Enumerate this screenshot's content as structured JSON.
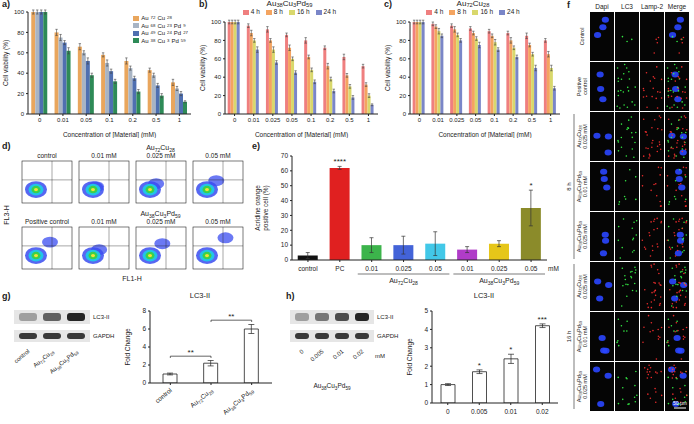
{
  "chart_data": [
    {
      "panel": "a)",
      "type": "bar",
      "x_label": "Concentration of [Material] (mM)",
      "y_label": "Cell viability (%)",
      "categories": [
        "0",
        "0.01",
        "0.05",
        "0.1",
        "0.2",
        "0.5",
        "1"
      ],
      "series": [
        {
          "name": "Au72Cu28",
          "color": "#e9a65d",
          "values": [
            100,
            80,
            66,
            58,
            52,
            43,
            31
          ],
          "errors": [
            2,
            3,
            3,
            2,
            3,
            2,
            3
          ]
        },
        {
          "name": "Au68Cu23Pd9",
          "color": "#a8b4c4",
          "values": [
            100,
            75,
            60,
            50,
            45,
            38,
            25
          ],
          "errors": [
            2,
            3,
            2,
            3,
            2,
            2,
            2
          ]
        },
        {
          "name": "Au49Cu24Pd27",
          "color": "#4f6fb0",
          "values": [
            100,
            70,
            52,
            42,
            35,
            28,
            20
          ],
          "errors": [
            2,
            2,
            3,
            2,
            2,
            2,
            2
          ]
        },
        {
          "name": "Au38Cu3Pd59",
          "color": "#2e8b57",
          "values": [
            100,
            62,
            38,
            32,
            22,
            18,
            12
          ],
          "errors": [
            2,
            3,
            2,
            2,
            2,
            2,
            1
          ]
        }
      ],
      "ylim": [
        0,
        100
      ],
      "yticks": [
        0,
        20,
        40,
        60,
        80,
        100
      ],
      "legend": "upper right"
    },
    {
      "panel": "b)",
      "type": "bar",
      "title": "Au38Cu3Pd59",
      "x_label": "Concentration of [Material] (mM)",
      "y_label": "Cell viability (%)",
      "categories": [
        "0",
        "0.01",
        "0.025",
        "0.05",
        "0.1",
        "0.2",
        "0.5",
        "1"
      ],
      "series": [
        {
          "name": "4 h",
          "color": "#ef7f7f",
          "values": [
            100,
            96,
            92,
            86,
            80,
            72,
            62,
            52
          ],
          "errors": [
            2,
            2,
            3,
            2,
            3,
            2,
            3,
            2
          ]
        },
        {
          "name": "8 h",
          "color": "#f4a460",
          "values": [
            100,
            88,
            80,
            72,
            62,
            52,
            42,
            32
          ],
          "errors": [
            2,
            3,
            2,
            3,
            2,
            3,
            2,
            2
          ]
        },
        {
          "name": "16 h",
          "color": "#d9d86c",
          "values": [
            100,
            80,
            70,
            60,
            48,
            38,
            30,
            20
          ],
          "errors": [
            2,
            2,
            3,
            2,
            2,
            2,
            2,
            2
          ]
        },
        {
          "name": "24 h",
          "color": "#7a86c8",
          "values": [
            100,
            70,
            56,
            45,
            35,
            25,
            18,
            10
          ],
          "errors": [
            2,
            3,
            2,
            2,
            2,
            2,
            2,
            1
          ]
        }
      ],
      "ylim": [
        0,
        100
      ],
      "yticks": [
        0,
        20,
        40,
        60,
        80,
        100
      ],
      "legend": "top"
    },
    {
      "panel": "c)",
      "type": "bar",
      "title": "Au72Cu28",
      "x_label": "Concentration of [Material] (mM)",
      "y_label": "Cell viability (%)",
      "categories": [
        "0",
        "0.01",
        "0.025",
        "0.05",
        "0.1",
        "0.2",
        "0.5",
        "1"
      ],
      "series": [
        {
          "name": "4 h",
          "color": "#ef7f7f",
          "values": [
            100,
            98,
            96,
            93,
            90,
            88,
            85,
            80
          ],
          "errors": [
            2,
            2,
            2,
            2,
            2,
            2,
            3,
            2
          ]
        },
        {
          "name": "8 h",
          "color": "#f4a460",
          "values": [
            100,
            95,
            92,
            88,
            85,
            80,
            75,
            65
          ],
          "errors": [
            2,
            2,
            3,
            2,
            2,
            3,
            2,
            3
          ]
        },
        {
          "name": "16 h",
          "color": "#d9d86c",
          "values": [
            100,
            90,
            86,
            82,
            78,
            72,
            65,
            50
          ],
          "errors": [
            2,
            3,
            2,
            2,
            3,
            2,
            2,
            3
          ]
        },
        {
          "name": "24 h",
          "color": "#7a86c8",
          "values": [
            100,
            85,
            80,
            75,
            70,
            62,
            50,
            28
          ],
          "errors": [
            2,
            2,
            2,
            3,
            2,
            2,
            3,
            2
          ]
        }
      ],
      "ylim": [
        0,
        100
      ],
      "yticks": [
        0,
        20,
        40,
        60,
        80,
        100
      ],
      "legend": "top"
    },
    {
      "panel": "e)",
      "type": "bar",
      "y_label": "Acridine orange positive cell (%)",
      "categories": [
        "control",
        "PC",
        "0.01",
        "0.025",
        "0.05",
        "0.01",
        "0.025",
        "0.05"
      ],
      "values": [
        3,
        62,
        10,
        10,
        11,
        7,
        11,
        35
      ],
      "errors": [
        2,
        1,
        5,
        6,
        8,
        2,
        2,
        12
      ],
      "colors": [
        "#111111",
        "#e02020",
        "#3cb44b",
        "#4363d8",
        "#42c8e8",
        "#b03cc8",
        "#e6c619",
        "#8b8b2a"
      ],
      "groups": [
        {
          "label": "Au72Cu28",
          "indices": [
            2,
            3,
            4
          ]
        },
        {
          "label": "Au38Cu3Pd59",
          "indices": [
            5,
            6,
            7
          ]
        }
      ],
      "unit": "mM",
      "annotations": [
        {
          "index": 1,
          "text": "****"
        },
        {
          "index": 7,
          "text": "*"
        }
      ],
      "ylim": [
        0,
        70
      ],
      "yticks": [
        0,
        10,
        20,
        30,
        40,
        50,
        60,
        70
      ]
    },
    {
      "panel": "g)",
      "type": "bar",
      "title": "LC3-II",
      "y_label": "Fold Change",
      "categories": [
        "control",
        "Au72Cu28",
        "Au38Cu3Pd59"
      ],
      "values": [
        1,
        2.2,
        6
      ],
      "errors": [
        0.1,
        0.3,
        0.5
      ],
      "color": "#ffffff",
      "comparisons": [
        {
          "indices": [
            0,
            1
          ],
          "text": "**"
        },
        {
          "indices": [
            1,
            2
          ],
          "text": "**"
        }
      ],
      "ylim": [
        0,
        8
      ],
      "yticks": [
        0,
        2,
        4,
        6,
        8
      ]
    },
    {
      "panel": "h)",
      "type": "bar",
      "title": "LC3-II",
      "y_label": "Fold Change",
      "categories": [
        "0",
        "0.005",
        "0.01",
        "0.02"
      ],
      "values": [
        1,
        1.7,
        2.4,
        4.2
      ],
      "errors": [
        0.05,
        0.1,
        0.25,
        0.1
      ],
      "color": "#ffffff",
      "annotations": [
        {
          "index": 1,
          "text": "*"
        },
        {
          "index": 2,
          "text": "*"
        },
        {
          "index": 3,
          "text": "***"
        }
      ],
      "ylim": [
        0,
        5
      ],
      "yticks": [
        0,
        1,
        2,
        3,
        4,
        5
      ]
    }
  ],
  "flow_cytometry": {
    "panel": "d)",
    "x_label": "FL1-H",
    "y_label": "FL3-H",
    "rows": [
      {
        "group": "Au72Cu28",
        "plots": [
          "control",
          "0.01 mM",
          "0.025 mM",
          "0.05 mM"
        ]
      },
      {
        "group": "Au38Cu3Pd59",
        "plots": [
          "Positive control",
          "0.01 mM",
          "0.025 mM",
          "0.05 mM"
        ]
      }
    ]
  },
  "microscopy": {
    "panel": "f",
    "columns": [
      "Dapi",
      "LC3",
      "Lamp-2",
      "Merge"
    ],
    "rows": [
      "Control",
      "Positive control",
      "Au72Cu28 0.025 mM",
      "Au38Cu3Pd59 0.01 mM",
      "Au38Cu3Pd59 0.025 mM",
      "Au72Cu28 0.025 mM",
      "Au38Cu3Pd59 0.01 mM",
      "Au38Cu3Pd59 0.025 mM"
    ],
    "groups": [
      {
        "label": "8 h",
        "rows": [
          2,
          3,
          4
        ]
      },
      {
        "label": "16 h",
        "rows": [
          5,
          6,
          7
        ]
      }
    ],
    "scale_bar": "50 μm"
  },
  "blots": [
    {
      "bands": [
        "LC3-II",
        "GAPDH"
      ],
      "lanes": [
        "control",
        "Au72Cu28",
        "Au38Cu3Pd59"
      ]
    },
    {
      "bands": [
        "LC3-II",
        "GAPDH"
      ],
      "lanes": [
        "0",
        "0.005",
        "0.01",
        "0.02"
      ],
      "unit": "mM",
      "group": "Au38Cu3Pd59"
    }
  ]
}
